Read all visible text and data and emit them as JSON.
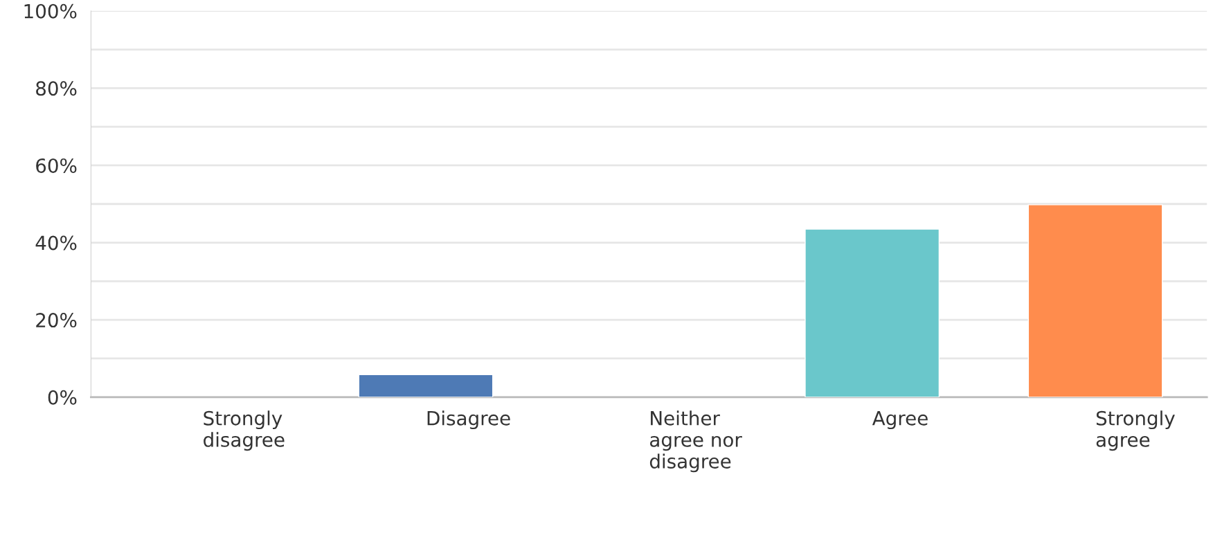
{
  "chart_data": {
    "type": "bar",
    "categories": [
      "Strongly disagree",
      "Disagree",
      "Neither agree nor disagree",
      "Agree",
      "Strongly agree"
    ],
    "values": [
      0,
      5.8,
      0,
      43.5,
      49.8
    ],
    "colors": [
      null,
      "#4e7ab5",
      null,
      "#6ac7cb",
      "#ff8c4d"
    ],
    "ylim": [
      0,
      100
    ],
    "yticks": [
      {
        "value": 0,
        "label": "0%"
      },
      {
        "value": 10,
        "label": null
      },
      {
        "value": 20,
        "label": "20%"
      },
      {
        "value": 30,
        "label": null
      },
      {
        "value": 40,
        "label": "40%"
      },
      {
        "value": 50,
        "label": null
      },
      {
        "value": 60,
        "label": "60%"
      },
      {
        "value": 70,
        "label": null
      },
      {
        "value": 80,
        "label": "80%"
      },
      {
        "value": 90,
        "label": null
      },
      {
        "value": 100,
        "label": "100%"
      }
    ],
    "grid": "y"
  }
}
